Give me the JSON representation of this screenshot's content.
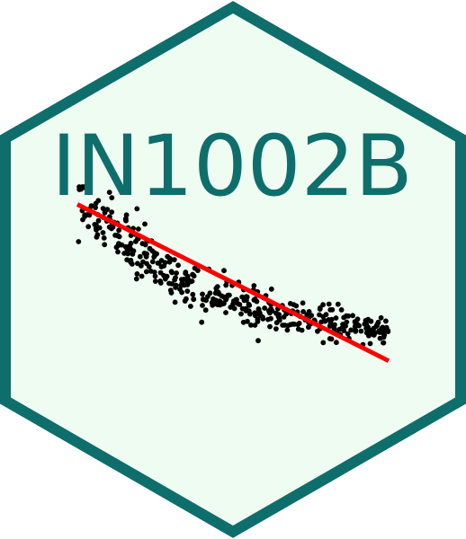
{
  "sticker": {
    "title": "IN1002B",
    "colors": {
      "border": "#0e6e6b",
      "fill": "#eefcf1",
      "title": "#0e6e6b",
      "points": "#000000",
      "trend_line": "#ff0000"
    }
  },
  "chart_data": {
    "type": "scatter",
    "title": "",
    "xlabel": "",
    "ylabel": "",
    "grid": false,
    "legend": "none",
    "xlim": [
      0,
      100
    ],
    "ylim": [
      0,
      100
    ],
    "trend_line": {
      "x": [
        0,
        100
      ],
      "y": [
        92.5,
        25.5
      ]
    }
  }
}
